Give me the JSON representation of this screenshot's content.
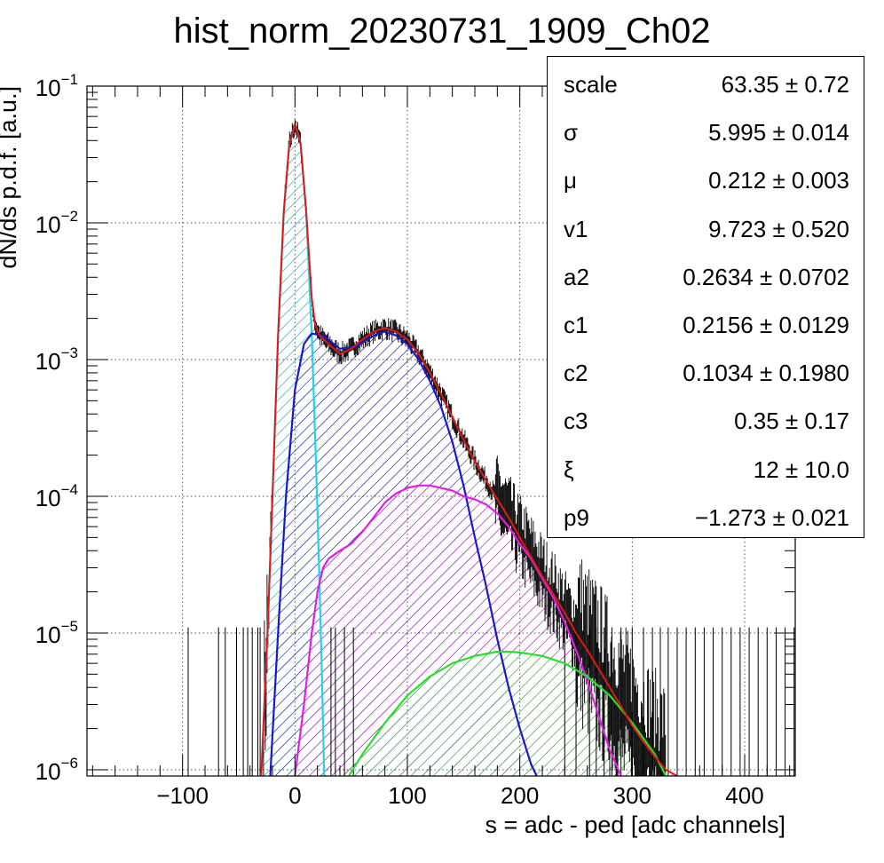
{
  "chart_data": {
    "type": "line",
    "title": "hist_norm_20230731_1909_Ch02",
    "xlabel": "s = adc - ped [adc channels]",
    "ylabel": "dN/ds p.d.f. [a.u.]",
    "xlim": [
      -185,
      445
    ],
    "ylim": [
      9e-07,
      0.1
    ],
    "yscale": "log",
    "grid": true,
    "x_ticks": [
      -100,
      0,
      100,
      200,
      300,
      400
    ],
    "x_tick_labels": [
      "−100",
      "0",
      "100",
      "200",
      "300",
      "400"
    ],
    "y_ticks": [
      {
        "value": 1e-06,
        "base": "10",
        "exp": "−6"
      },
      {
        "value": 1e-05,
        "base": "10",
        "exp": "−5"
      },
      {
        "value": 0.0001,
        "base": "10",
        "exp": "−4"
      },
      {
        "value": 0.001,
        "base": "10",
        "exp": "−3"
      },
      {
        "value": 0.01,
        "base": "10",
        "exp": "−2"
      },
      {
        "value": 0.1,
        "base": "10",
        "exp": "−1"
      }
    ],
    "series": [
      {
        "role": "pedestal",
        "color": "#22d3e6",
        "x": [
          -30,
          -24,
          -20,
          -15,
          -10,
          -5,
          0,
          5,
          10,
          15,
          20,
          24,
          26
        ],
        "y": [
          9e-07,
          1.2e-05,
          0.0001,
          0.0015,
          0.012,
          0.038,
          0.053,
          0.038,
          0.012,
          0.0015,
          8e-05,
          5e-06,
          9e-07
        ]
      },
      {
        "role": "single-pe",
        "color": "#1919c8",
        "x": [
          -22,
          -15,
          -8,
          0,
          8,
          15,
          25,
          40,
          55,
          70,
          80,
          90,
          100,
          110,
          120,
          130,
          140,
          150,
          160,
          170,
          180,
          190,
          200,
          210,
          215
        ],
        "y": [
          9e-07,
          1e-05,
          0.0001,
          0.0006,
          0.0013,
          0.00155,
          0.0015,
          0.0012,
          0.00125,
          0.0015,
          0.0016,
          0.0015,
          0.0013,
          0.001,
          0.0007,
          0.00045,
          0.00025,
          0.00012,
          5e-05,
          2.2e-05,
          9e-06,
          4e-06,
          2e-06,
          1.1e-06,
          9e-07
        ]
      },
      {
        "role": "double-pe",
        "color": "#e020e0",
        "x": [
          0,
          8,
          15,
          20,
          25,
          30,
          40,
          50,
          60,
          70,
          80,
          90,
          100,
          110,
          120,
          130,
          140,
          150,
          160,
          170,
          180,
          190,
          200,
          210,
          220,
          230,
          240,
          250,
          260,
          270,
          280,
          290
        ],
        "y": [
          9e-07,
          3e-06,
          1e-05,
          2e-05,
          3e-05,
          3.5e-05,
          4e-05,
          4.5e-05,
          5.5e-05,
          7e-05,
          9e-05,
          0.000105,
          0.000115,
          0.00012,
          0.00012,
          0.000115,
          0.00011,
          0.0001,
          9.5e-05,
          8.7e-05,
          7.5e-05,
          6e-05,
          4.5e-05,
          3.5e-05,
          2.5e-05,
          1.8e-05,
          1.2e-05,
          7.5e-06,
          4.5e-06,
          2.5e-06,
          1.4e-06,
          9e-07
        ]
      },
      {
        "role": "triple-pe",
        "color": "#28e028",
        "x": [
          48,
          60,
          80,
          100,
          120,
          140,
          160,
          180,
          190,
          200,
          220,
          240,
          260,
          280,
          300,
          320,
          330
        ],
        "y": [
          9e-07,
          1.3e-06,
          2.2e-06,
          3.5e-06,
          4.8e-06,
          6e-06,
          6.8e-06,
          7.3e-06,
          7.3e-06,
          7.2e-06,
          6.8e-06,
          6e-06,
          4.8e-06,
          3.5e-06,
          2.2e-06,
          1.3e-06,
          9e-07
        ]
      },
      {
        "role": "total-fit",
        "color": "#e01818",
        "x": [
          -30,
          -24,
          -20,
          -15,
          -10,
          -5,
          0,
          5,
          10,
          15,
          18,
          22,
          30,
          40,
          50,
          60,
          70,
          80,
          90,
          100,
          110,
          120,
          130,
          140,
          150,
          160,
          170,
          180,
          190,
          200,
          210,
          220,
          230,
          240,
          250,
          260,
          270,
          280,
          290,
          300,
          310,
          320,
          330,
          340
        ],
        "y": [
          9e-07,
          1.2e-05,
          0.0001,
          0.0015,
          0.012,
          0.038,
          0.053,
          0.038,
          0.012,
          0.0028,
          0.0018,
          0.0015,
          0.0013,
          0.0011,
          0.0012,
          0.0014,
          0.0016,
          0.0017,
          0.0016,
          0.0014,
          0.0011,
          0.0008,
          0.00056,
          0.00038,
          0.00026,
          0.00018,
          0.00013,
          9.5e-05,
          7e-05,
          5e-05,
          3.6e-05,
          2.6e-05,
          1.9e-05,
          1.4e-05,
          1e-05,
          7.5e-06,
          5.5e-06,
          4e-06,
          2.9e-06,
          2.1e-06,
          1.6e-06,
          1.25e-06,
          1e-06,
          9e-07
        ]
      }
    ]
  },
  "stats": [
    {
      "name": "scale",
      "value": "63.35 ± 0.72"
    },
    {
      "name": "σ",
      "value": "5.995 ± 0.014"
    },
    {
      "name": "μ",
      "value": "0.212 ± 0.003"
    },
    {
      "name": "v1",
      "value": "9.723 ± 0.520"
    },
    {
      "name": "a2",
      "value": "0.2634 ± 0.0702"
    },
    {
      "name": "c1",
      "value": "0.2156 ± 0.0129"
    },
    {
      "name": "c2",
      "value": "0.1034 ± 0.1980"
    },
    {
      "name": "c3",
      "value": "0.35 ± 0.17"
    },
    {
      "name": "ξ",
      "value": "12 ± 10.0"
    },
    {
      "name": "p9",
      "value": "−1.273 ± 0.021"
    }
  ]
}
